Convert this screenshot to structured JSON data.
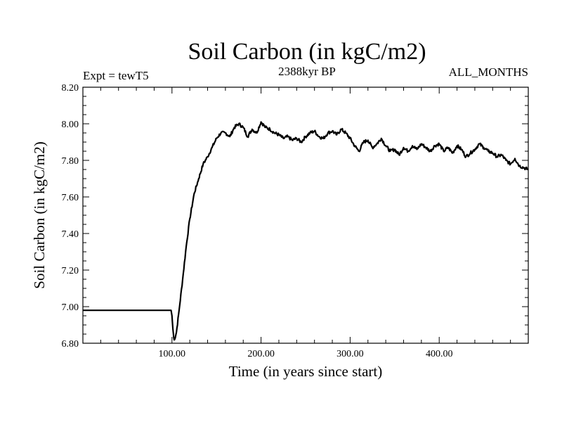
{
  "chart_data": {
    "type": "line",
    "title": "Soil Carbon (in kgC/m2)",
    "subtitle_left": "Expt = tewT5",
    "subtitle_center": "2388kyr BP",
    "subtitle_right": "ALL_MONTHS",
    "xlabel": "Time (in years since start)",
    "ylabel": "Soil Carbon (in kgC/m2)",
    "xlim": [
      0,
      500
    ],
    "ylim": [
      6.8,
      8.2
    ],
    "x_ticks": [
      100,
      200,
      300,
      400
    ],
    "x_tick_labels": [
      "100.00",
      "200.00",
      "300.00",
      "400.00"
    ],
    "y_ticks": [
      6.8,
      7.0,
      7.2,
      7.4,
      7.6,
      7.8,
      8.0,
      8.2
    ],
    "y_tick_labels": [
      "6.80",
      "7.00",
      "7.20",
      "7.40",
      "7.60",
      "7.80",
      "8.00",
      "8.20"
    ],
    "grid": false,
    "line_color": "#000000",
    "series": [
      {
        "name": "Soil Carbon",
        "x": [
          0,
          99,
          100,
          101,
          102,
          103,
          105,
          108,
          112,
          116,
          120,
          125,
          130,
          135,
          140,
          145,
          150,
          155,
          160,
          165,
          170,
          175,
          180,
          185,
          190,
          195,
          200,
          205,
          210,
          215,
          220,
          225,
          230,
          235,
          240,
          245,
          250,
          255,
          260,
          265,
          270,
          275,
          280,
          285,
          290,
          295,
          300,
          305,
          310,
          315,
          320,
          325,
          330,
          335,
          340,
          345,
          350,
          355,
          360,
          365,
          370,
          375,
          380,
          385,
          390,
          395,
          400,
          405,
          410,
          415,
          420,
          425,
          430,
          435,
          440,
          445,
          450,
          455,
          460,
          465,
          470,
          475,
          480,
          485,
          490,
          495,
          500
        ],
        "values": [
          6.98,
          6.98,
          6.95,
          6.88,
          6.83,
          6.82,
          6.86,
          6.98,
          7.15,
          7.33,
          7.48,
          7.62,
          7.7,
          7.78,
          7.82,
          7.87,
          7.92,
          7.95,
          7.95,
          7.93,
          7.98,
          8.0,
          7.98,
          7.93,
          7.97,
          7.95,
          8.01,
          7.98,
          7.97,
          7.95,
          7.94,
          7.92,
          7.93,
          7.91,
          7.92,
          7.9,
          7.93,
          7.95,
          7.96,
          7.93,
          7.92,
          7.95,
          7.96,
          7.94,
          7.97,
          7.95,
          7.92,
          7.88,
          7.85,
          7.9,
          7.91,
          7.87,
          7.89,
          7.92,
          7.88,
          7.85,
          7.86,
          7.83,
          7.87,
          7.85,
          7.88,
          7.86,
          7.89,
          7.87,
          7.85,
          7.88,
          7.89,
          7.85,
          7.87,
          7.84,
          7.88,
          7.86,
          7.82,
          7.84,
          7.86,
          7.89,
          7.87,
          7.85,
          7.84,
          7.82,
          7.83,
          7.8,
          7.78,
          7.81,
          7.77,
          7.76,
          7.75
        ]
      }
    ]
  }
}
